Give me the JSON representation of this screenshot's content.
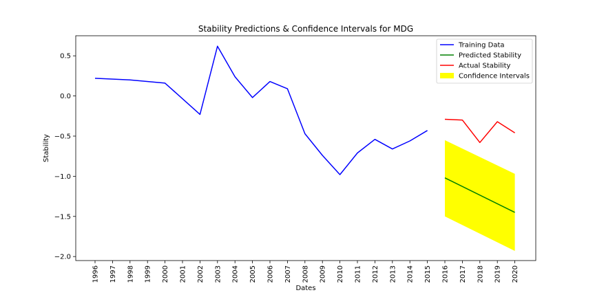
{
  "chart_data": {
    "type": "line",
    "title": "Stability Predictions & Confidence Intervals for MDG",
    "xlabel": "Dates",
    "ylabel": "Stability",
    "x_categories": [
      "1996",
      "1997",
      "1998",
      "1999",
      "2000",
      "2001",
      "2002",
      "2003",
      "2004",
      "2005",
      "2006",
      "2007",
      "2008",
      "2009",
      "2010",
      "2011",
      "2012",
      "2013",
      "2014",
      "2015",
      "2016",
      "2017",
      "2018",
      "2019",
      "2020"
    ],
    "ylim": [
      -2.05,
      0.75
    ],
    "yticks": [
      0.5,
      0.0,
      -0.5,
      -1.0,
      -1.5,
      -2.0
    ],
    "ytick_labels": [
      "0.5",
      "0.0",
      "−0.5",
      "−1.0",
      "−1.5",
      "−2.0"
    ],
    "grid": false,
    "legend_position": "top-right",
    "series": [
      {
        "name": "Training Data",
        "color": "#0000ff",
        "points": [
          {
            "x": "1996",
            "y": 0.22
          },
          {
            "x": "1998",
            "y": 0.2
          },
          {
            "x": "2000",
            "y": 0.16
          },
          {
            "x": "2002",
            "y": -0.23
          },
          {
            "x": "2003",
            "y": 0.62
          },
          {
            "x": "2004",
            "y": 0.24
          },
          {
            "x": "2005",
            "y": -0.02
          },
          {
            "x": "2006",
            "y": 0.18
          },
          {
            "x": "2007",
            "y": 0.09
          },
          {
            "x": "2008",
            "y": -0.47
          },
          {
            "x": "2009",
            "y": -0.74
          },
          {
            "x": "2010",
            "y": -0.98
          },
          {
            "x": "2011",
            "y": -0.71
          },
          {
            "x": "2012",
            "y": -0.54
          },
          {
            "x": "2013",
            "y": -0.66
          },
          {
            "x": "2014",
            "y": -0.56
          },
          {
            "x": "2015",
            "y": -0.43
          }
        ]
      },
      {
        "name": "Predicted Stability",
        "color": "#008000",
        "points": [
          {
            "x": "2016",
            "y": -1.02
          },
          {
            "x": "2020",
            "y": -1.45
          }
        ]
      },
      {
        "name": "Actual Stability",
        "color": "#ff0000",
        "points": [
          {
            "x": "2016",
            "y": -0.29
          },
          {
            "x": "2017",
            "y": -0.3
          },
          {
            "x": "2018",
            "y": -0.58
          },
          {
            "x": "2019",
            "y": -0.32
          },
          {
            "x": "2020",
            "y": -0.46
          }
        ]
      }
    ],
    "confidence_interval": {
      "name": "Confidence Intervals",
      "color": "#ffff00",
      "upper": [
        {
          "x": "2016",
          "y": -0.55
        },
        {
          "x": "2020",
          "y": -0.97
        }
      ],
      "lower": [
        {
          "x": "2016",
          "y": -1.5
        },
        {
          "x": "2020",
          "y": -1.93
        }
      ]
    }
  }
}
